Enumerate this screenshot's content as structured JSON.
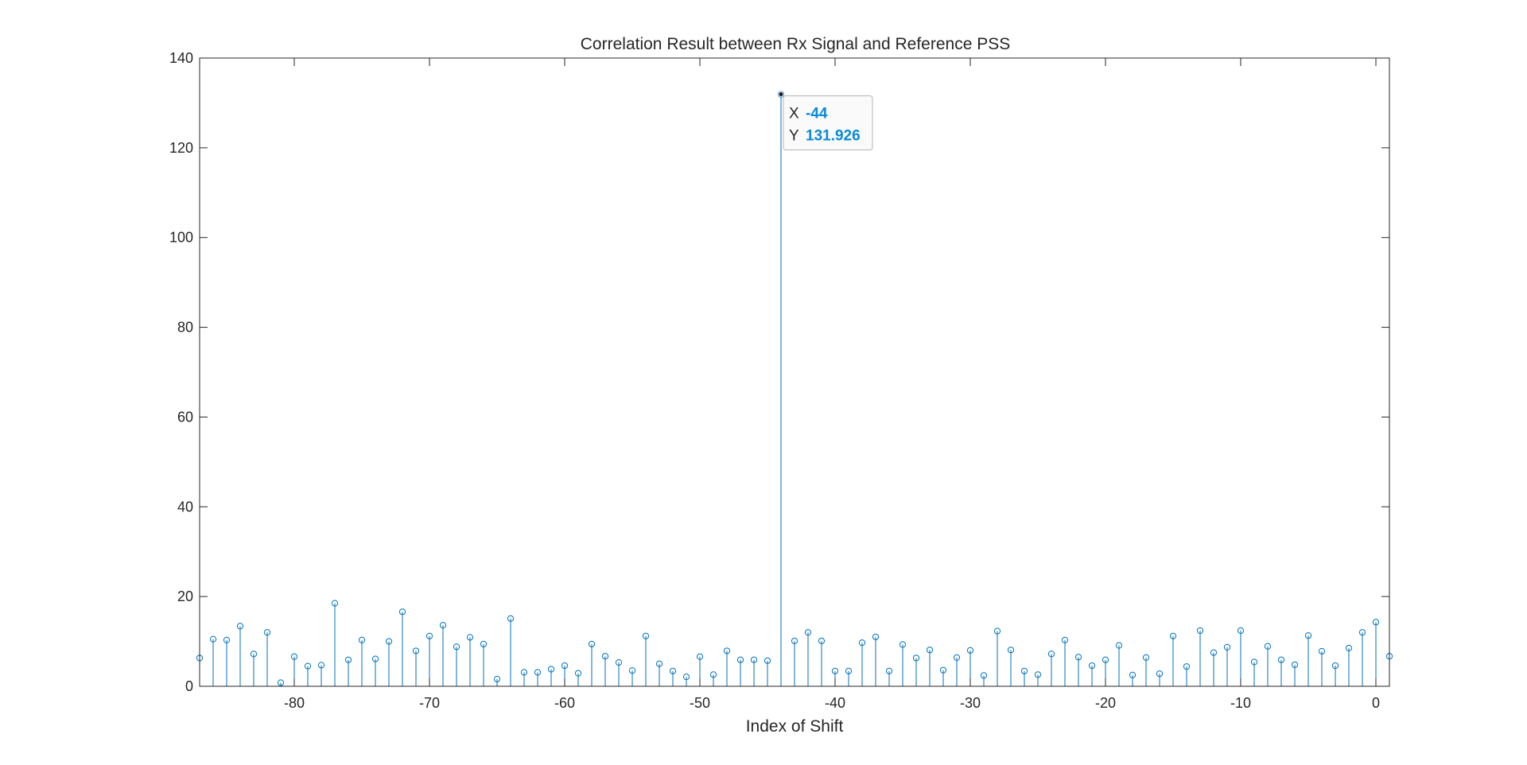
{
  "chart_data": {
    "type": "stem",
    "title": "Correlation Result between Rx Signal and Reference PSS",
    "xlabel": "Index of Shift",
    "ylabel": "",
    "xlim": [
      -87,
      1
    ],
    "ylim": [
      0,
      140
    ],
    "grid": false,
    "xticks": [
      -80,
      -70,
      -60,
      -50,
      -40,
      -30,
      -20,
      -10,
      0
    ],
    "xtick_labels": [
      "-80",
      "-70",
      "-60",
      "-50",
      "-40",
      "-30",
      "-20",
      "-10",
      "0"
    ],
    "yticks": [
      0,
      20,
      40,
      60,
      80,
      100,
      120,
      140
    ],
    "ytick_labels": [
      "0",
      "20",
      "40",
      "60",
      "80",
      "100",
      "120",
      "140"
    ],
    "colors": {
      "stem": "#0072BD",
      "axis": "#262626",
      "datatip_value": "#0072BD"
    },
    "x": [
      -87,
      -86,
      -85,
      -84,
      -83,
      -82,
      -81,
      -80,
      -79,
      -78,
      -77,
      -76,
      -75,
      -74,
      -73,
      -72,
      -71,
      -70,
      -69,
      -68,
      -67,
      -66,
      -65,
      -64,
      -63,
      -62,
      -61,
      -60,
      -59,
      -58,
      -57,
      -56,
      -55,
      -54,
      -53,
      -52,
      -51,
      -50,
      -49,
      -48,
      -47,
      -46,
      -45,
      -44,
      -43,
      -42,
      -41,
      -40,
      -39,
      -38,
      -37,
      -36,
      -35,
      -34,
      -33,
      -32,
      -31,
      -30,
      -29,
      -28,
      -27,
      -26,
      -25,
      -24,
      -23,
      -22,
      -21,
      -20,
      -19,
      -18,
      -17,
      -16,
      -15,
      -14,
      -13,
      -12,
      -11,
      -10,
      -9,
      -8,
      -7,
      -6,
      -5,
      -4,
      -3,
      -2,
      -1,
      0,
      1
    ],
    "y": [
      6.3,
      10.5,
      10.3,
      13.4,
      7.2,
      12,
      0.8,
      6.6,
      4.5,
      4.7,
      18.5,
      5.9,
      10.3,
      6.1,
      10,
      16.6,
      7.9,
      11.2,
      13.6,
      8.8,
      10.9,
      9.4,
      1.6,
      15.1,
      3.1,
      3.1,
      3.8,
      4.6,
      2.9,
      9.4,
      6.7,
      5.3,
      3.5,
      11.2,
      5,
      3.4,
      2.1,
      6.6,
      2.6,
      7.9,
      5.9,
      5.9,
      5.7,
      131.926,
      10.1,
      12,
      10.1,
      3.4,
      3.4,
      9.7,
      11,
      3.4,
      9.3,
      6.3,
      8.1,
      3.6,
      6.4,
      8,
      2.4,
      12.3,
      8.1,
      3.4,
      2.6,
      7.2,
      10.3,
      6.5,
      4.6,
      5.9,
      9.1,
      2.5,
      6.4,
      2.8,
      11.2,
      4.4,
      12.4,
      7.5,
      8.7,
      12.4,
      5.4,
      8.9,
      5.9,
      4.8,
      11.3,
      7.8,
      4.6,
      8.5,
      12,
      14.3,
      6.7
    ],
    "datatip": {
      "x_label": "X",
      "x_value": "-44",
      "y_label": "Y",
      "y_value": "131.926",
      "x": -44,
      "y": 131.926
    }
  }
}
